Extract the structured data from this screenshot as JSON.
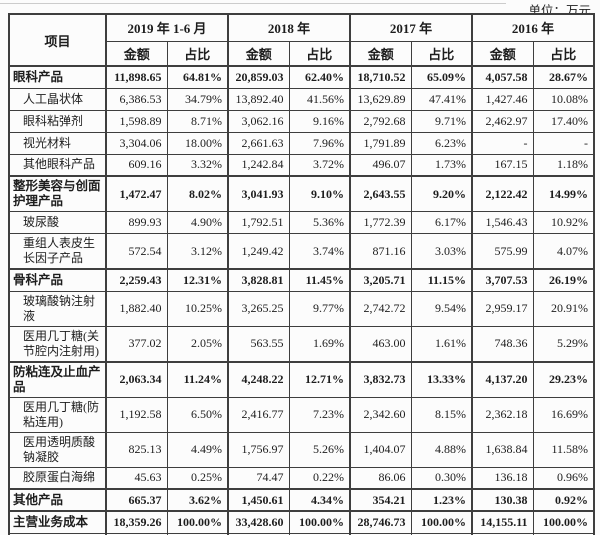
{
  "unit_label": "单位：万元",
  "colors": {
    "ink": "#1d1d1d",
    "table_border": "#3e3e3e",
    "top_rule": "#cccccc",
    "background": "#fcfcfc"
  },
  "table": {
    "item_header": "项目",
    "col_groups": [
      {
        "label": "2019 年 1-6 月"
      },
      {
        "label": "2018 年"
      },
      {
        "label": "2017 年"
      },
      {
        "label": "2016 年"
      }
    ],
    "sub_headers": [
      "金额",
      "占比"
    ],
    "rows": [
      {
        "label": "眼科产品",
        "level": 0,
        "bold": true,
        "values": [
          "11,898.65",
          "64.81%",
          "20,859.03",
          "62.40%",
          "18,710.52",
          "65.09%",
          "4,057.58",
          "28.67%"
        ]
      },
      {
        "label": "人工晶状体",
        "level": 1,
        "bold": false,
        "values": [
          "6,386.53",
          "34.79%",
          "13,892.40",
          "41.56%",
          "13,629.89",
          "47.41%",
          "1,427.46",
          "10.08%"
        ]
      },
      {
        "label": "眼科粘弹剂",
        "level": 1,
        "bold": false,
        "values": [
          "1,598.89",
          "8.71%",
          "3,062.16",
          "9.16%",
          "2,792.68",
          "9.71%",
          "2,462.97",
          "17.40%"
        ]
      },
      {
        "label": "视光材料",
        "level": 1,
        "bold": false,
        "values": [
          "3,304.06",
          "18.00%",
          "2,661.63",
          "7.96%",
          "1,791.89",
          "6.23%",
          "-",
          "-"
        ]
      },
      {
        "label": "其他眼科产品",
        "level": 1,
        "bold": false,
        "values": [
          "609.16",
          "3.32%",
          "1,242.84",
          "3.72%",
          "496.07",
          "1.73%",
          "167.15",
          "1.18%"
        ]
      },
      {
        "label": "整形美容与创面护理产品",
        "level": 0,
        "bold": true,
        "values": [
          "1,472.47",
          "8.02%",
          "3,041.93",
          "9.10%",
          "2,643.55",
          "9.20%",
          "2,122.42",
          "14.99%"
        ]
      },
      {
        "label": "玻尿酸",
        "level": 1,
        "bold": false,
        "values": [
          "899.93",
          "4.90%",
          "1,792.51",
          "5.36%",
          "1,772.39",
          "6.17%",
          "1,546.43",
          "10.92%"
        ]
      },
      {
        "label": "重组人表皮生长因子产品",
        "level": 1,
        "bold": false,
        "values": [
          "572.54",
          "3.12%",
          "1,249.42",
          "3.74%",
          "871.16",
          "3.03%",
          "575.99",
          "4.07%"
        ]
      },
      {
        "label": "骨科产品",
        "level": 0,
        "bold": true,
        "values": [
          "2,259.43",
          "12.31%",
          "3,828.81",
          "11.45%",
          "3,205.71",
          "11.15%",
          "3,707.53",
          "26.19%"
        ]
      },
      {
        "label": "玻璃酸钠注射液",
        "level": 1,
        "bold": false,
        "values": [
          "1,882.40",
          "10.25%",
          "3,265.25",
          "9.77%",
          "2,742.72",
          "9.54%",
          "2,959.17",
          "20.91%"
        ]
      },
      {
        "label": "医用几丁糖(关节腔内注射用)",
        "level": 1,
        "bold": false,
        "values": [
          "377.02",
          "2.05%",
          "563.55",
          "1.69%",
          "463.00",
          "1.61%",
          "748.36",
          "5.29%"
        ]
      },
      {
        "label": "防粘连及止血产品",
        "level": 0,
        "bold": true,
        "values": [
          "2,063.34",
          "11.24%",
          "4,248.22",
          "12.71%",
          "3,832.73",
          "13.33%",
          "4,137.20",
          "29.23%"
        ]
      },
      {
        "label": "医用几丁糖(防粘连用)",
        "level": 1,
        "bold": false,
        "values": [
          "1,192.58",
          "6.50%",
          "2,416.77",
          "7.23%",
          "2,342.60",
          "8.15%",
          "2,362.18",
          "16.69%"
        ]
      },
      {
        "label": "医用透明质酸钠凝胶",
        "level": 1,
        "bold": false,
        "values": [
          "825.13",
          "4.49%",
          "1,756.97",
          "5.26%",
          "1,404.07",
          "4.88%",
          "1,638.84",
          "11.58%"
        ]
      },
      {
        "label": "胶原蛋白海绵",
        "level": 1,
        "bold": false,
        "values": [
          "45.63",
          "0.25%",
          "74.47",
          "0.22%",
          "86.06",
          "0.30%",
          "136.18",
          "0.96%"
        ]
      },
      {
        "label": "其他产品",
        "level": 0,
        "bold": true,
        "values": [
          "665.37",
          "3.62%",
          "1,450.61",
          "4.34%",
          "354.21",
          "1.23%",
          "130.38",
          "0.92%"
        ]
      },
      {
        "label": "主营业务成本",
        "level": 0,
        "bold": true,
        "values": [
          "18,359.26",
          "100.00%",
          "33,428.60",
          "100.00%",
          "28,746.73",
          "100.00%",
          "14,155.11",
          "100.00%"
        ]
      }
    ]
  }
}
